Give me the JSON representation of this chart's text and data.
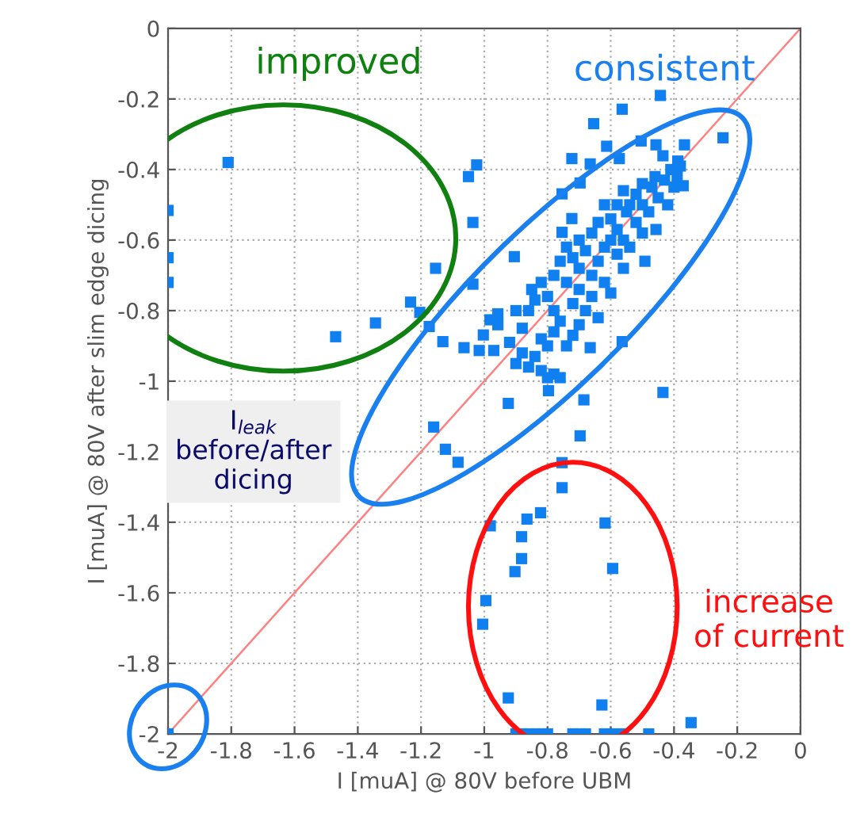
{
  "chart_data": {
    "type": "scatter",
    "xlabel": "I [muA] @ 80V before UBM",
    "ylabel": "I [muA] @ 80V after slim edge dicing",
    "xlim": [
      -2,
      0
    ],
    "ylim": [
      -2,
      0
    ],
    "xticks": [
      -2,
      -1.8,
      -1.6,
      -1.4,
      -1.2,
      -1,
      -0.8,
      -0.6,
      -0.4,
      -0.2,
      0
    ],
    "yticks": [
      -2,
      -1.8,
      -1.6,
      -1.4,
      -1.2,
      -1,
      -0.8,
      -0.6,
      -0.4,
      -0.2,
      0
    ],
    "grid": true,
    "marker": "square",
    "annotations": [
      "improved",
      "consistent",
      "increase\nof current",
      "I$_{leak}$\nbefore/after\ndicing"
    ],
    "series": [
      {
        "type": "line",
        "color": "#ff8080",
        "x": [
          -2,
          0
        ],
        "values": [
          -2,
          0
        ],
        "marker": "none"
      },
      {
        "color": "#1080f0",
        "x": [
          -1.81,
          -2,
          -2,
          -2,
          -1.154,
          -1.233,
          -1.204,
          -1.344,
          -1.47,
          -1.174,
          -1.131,
          -1.05,
          -1.024,
          -1.036,
          -1.036,
          -1.064,
          -1.016,
          -0.97,
          -1.003,
          -0.982,
          -0.957,
          -0.957,
          -0.905,
          -0.924,
          -1.16,
          -0.435,
          -0.685,
          -0.697,
          -0.564,
          -0.665,
          -0.797,
          -0.443,
          -0.564,
          -0.654,
          -0.245,
          -0.367,
          -0.504,
          -0.457,
          -0.613,
          -0.723,
          -0.665,
          -0.573,
          -0.697,
          -0.754,
          -0.723,
          -0.754,
          -0.435,
          -0.388,
          -0.371,
          -0.457,
          -0.492,
          -0.9,
          -0.88,
          -0.86,
          -0.84,
          -0.82,
          -0.8,
          -0.78,
          -0.76,
          -0.88,
          -0.86,
          -0.84,
          -0.82,
          -0.8,
          -0.78,
          -0.76,
          -0.74,
          -0.72,
          -0.7,
          -0.85,
          -0.82,
          -0.8,
          -0.78,
          -0.76,
          -0.74,
          -0.72,
          -0.7,
          -0.68,
          -0.66,
          -0.64,
          -0.74,
          -0.72,
          -0.7,
          -0.68,
          -0.66,
          -0.64,
          -0.62,
          -0.6,
          -0.62,
          -0.6,
          -0.58,
          -0.56,
          -0.66,
          -0.64,
          -0.6,
          -0.58,
          -0.56,
          -0.54,
          -0.62,
          -0.58,
          -0.55,
          -0.52,
          -0.5,
          -0.56,
          -0.52,
          -0.5,
          -0.48,
          -0.5,
          -0.47,
          -0.45,
          -0.46,
          -0.43,
          -0.41,
          -0.39,
          -0.4,
          -0.42,
          -0.38,
          -0.92,
          -0.9,
          -0.78,
          -0.7,
          -0.54,
          -1.123,
          -1.083,
          -0.754,
          -0.754,
          -0.981,
          -0.865,
          -0.822,
          -0.882,
          -0.882,
          -0.903,
          -0.618,
          -0.594,
          -0.995,
          -1.005,
          -0.924,
          -0.628,
          -0.346,
          -0.9,
          -0.88,
          -0.86,
          -0.84,
          -0.82,
          -0.8,
          -0.72,
          -0.7,
          -0.68,
          -0.62,
          -0.6,
          -0.58,
          -0.56,
          -0.48,
          -2
        ],
        "values": [
          -0.38,
          -0.516,
          -0.65,
          -0.72,
          -0.68,
          -0.776,
          -0.805,
          -0.835,
          -0.874,
          -0.845,
          -0.888,
          -0.42,
          -0.387,
          -0.55,
          -0.725,
          -0.905,
          -0.913,
          -0.913,
          -0.869,
          -0.826,
          -0.809,
          -0.84,
          -0.647,
          -1.063,
          -1.13,
          -1.032,
          -1.053,
          -1.155,
          -0.888,
          -0.905,
          -1.027,
          -0.19,
          -0.229,
          -0.27,
          -0.31,
          -0.33,
          -0.319,
          -0.33,
          -0.334,
          -0.369,
          -0.384,
          -0.369,
          -0.438,
          -0.469,
          -0.539,
          -0.578,
          -0.361,
          -0.376,
          -0.446,
          -0.57,
          -0.66,
          -0.95,
          -0.92,
          -0.96,
          -0.93,
          -0.97,
          -0.99,
          -0.98,
          -0.99,
          -0.85,
          -0.8,
          -0.77,
          -0.88,
          -0.9,
          -0.86,
          -0.83,
          -0.9,
          -0.87,
          -0.84,
          -0.74,
          -0.72,
          -0.76,
          -0.7,
          -0.66,
          -0.72,
          -0.78,
          -0.74,
          -0.8,
          -0.76,
          -0.82,
          -0.62,
          -0.65,
          -0.68,
          -0.63,
          -0.7,
          -0.66,
          -0.72,
          -0.75,
          -0.62,
          -0.6,
          -0.64,
          -0.68,
          -0.58,
          -0.55,
          -0.54,
          -0.57,
          -0.6,
          -0.62,
          -0.5,
          -0.5,
          -0.52,
          -0.55,
          -0.58,
          -0.46,
          -0.47,
          -0.5,
          -0.52,
          -0.44,
          -0.45,
          -0.48,
          -0.42,
          -0.43,
          -0.4,
          -0.42,
          -0.45,
          -0.5,
          -0.39,
          -0.89,
          -0.8,
          -0.8,
          -0.6,
          -0.5,
          -1.193,
          -1.23,
          -1.231,
          -1.302,
          -1.41,
          -1.391,
          -1.373,
          -1.441,
          -1.503,
          -1.54,
          -1.402,
          -1.531,
          -1.622,
          -1.689,
          -1.898,
          -1.918,
          -1.968,
          -2,
          -2,
          -2,
          -2,
          -2,
          -2,
          -2,
          -2,
          -2,
          -2,
          -2,
          -2,
          -2,
          -2,
          -2
        ]
      }
    ]
  }
}
